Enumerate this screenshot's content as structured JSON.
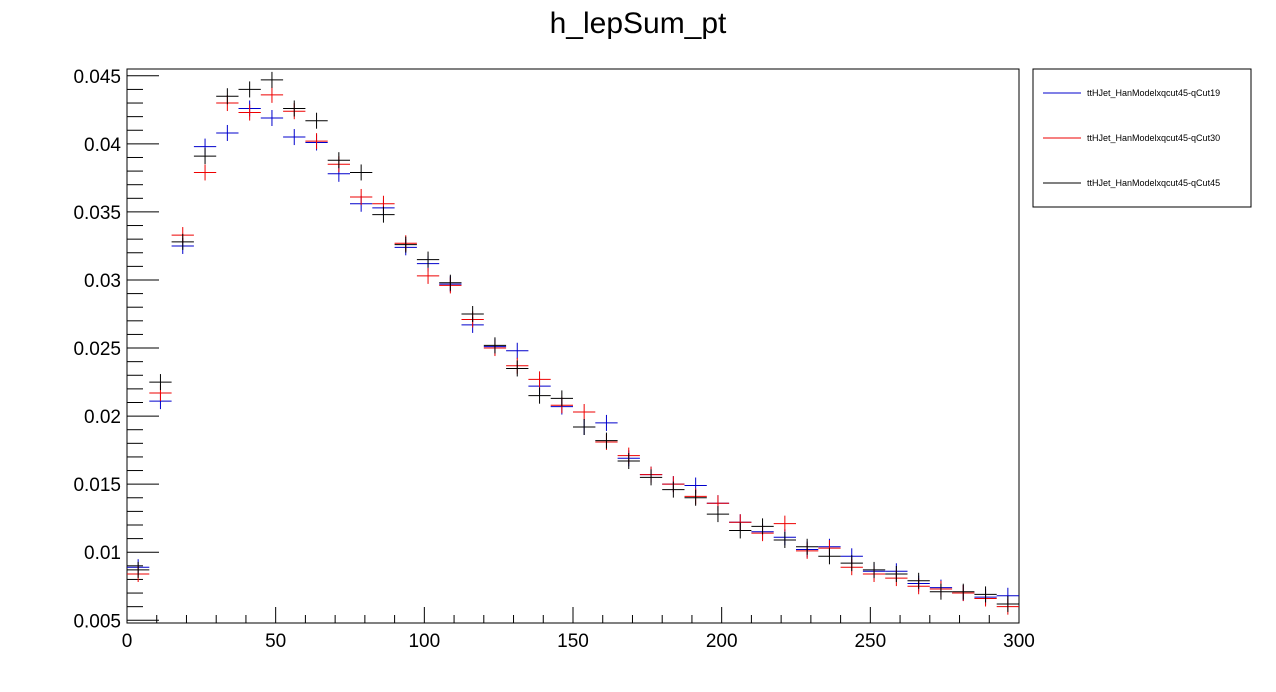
{
  "chart_data": {
    "type": "scatter",
    "title": "h_lepSum_pt",
    "xlabel": "",
    "ylabel": "",
    "xlim": [
      0,
      300
    ],
    "ylim": [
      0.0048,
      0.0455
    ],
    "x_ticks": [
      "0",
      "50",
      "100",
      "150",
      "200",
      "250",
      "300"
    ],
    "y_ticks": [
      "0.005",
      "0.01",
      "0.015",
      "0.02",
      "0.025",
      "0.03",
      "0.035",
      "0.04",
      "0.045"
    ],
    "grid": false,
    "legend_position": "top-right-outside",
    "bin_width": 7.5,
    "x": [
      3.75,
      11.25,
      18.75,
      26.25,
      33.75,
      41.25,
      48.75,
      56.25,
      63.75,
      71.25,
      78.75,
      86.25,
      93.75,
      101.25,
      108.75,
      116.25,
      123.75,
      131.25,
      138.75,
      146.25,
      153.75,
      161.25,
      168.75,
      176.25,
      183.75,
      191.25,
      198.75,
      206.25,
      213.75,
      221.25,
      228.75,
      236.25,
      243.75,
      251.25,
      258.75,
      266.25,
      273.75,
      281.25,
      288.75,
      296.25
    ],
    "series": [
      {
        "name": "ttHJet_HanModelxqcut45-qCut19",
        "color": "#0000cc",
        "values": [
          0.0089,
          0.0211,
          0.0325,
          0.0398,
          0.0408,
          0.0426,
          0.0419,
          0.0405,
          0.0401,
          0.0378,
          0.0356,
          0.0353,
          0.0324,
          0.0312,
          0.0297,
          0.0267,
          0.0251,
          0.0248,
          0.0222,
          0.0207,
          0.0192,
          0.0195,
          0.0169,
          0.0157,
          0.015,
          0.0149,
          0.0136,
          0.0122,
          0.0115,
          0.0111,
          0.0102,
          0.0104,
          0.0097,
          0.0086,
          0.0086,
          0.0077,
          0.0074,
          0.007,
          0.0067,
          0.0068
        ]
      },
      {
        "name": "ttHJet_HanModelxqcut45-qCut30",
        "color": "#ee0000",
        "values": [
          0.0084,
          0.0217,
          0.0333,
          0.0379,
          0.043,
          0.0423,
          0.0436,
          0.0424,
          0.0402,
          0.0385,
          0.0361,
          0.0356,
          0.0327,
          0.0303,
          0.0296,
          0.0271,
          0.025,
          0.0237,
          0.0227,
          0.0208,
          0.0203,
          0.0181,
          0.0171,
          0.0157,
          0.015,
          0.0141,
          0.0136,
          0.0122,
          0.0114,
          0.0121,
          0.0101,
          0.0103,
          0.0089,
          0.0084,
          0.0081,
          0.0075,
          0.0073,
          0.007,
          0.0066,
          0.006
        ]
      },
      {
        "name": "ttHJet_HanModelxqcut45-qCut45",
        "color": "#000000",
        "values": [
          0.0087,
          0.0225,
          0.0328,
          0.0391,
          0.0435,
          0.044,
          0.0447,
          0.0426,
          0.0417,
          0.0388,
          0.0379,
          0.0348,
          0.0326,
          0.0315,
          0.0298,
          0.0275,
          0.0252,
          0.0235,
          0.0215,
          0.0213,
          0.0192,
          0.0182,
          0.0167,
          0.0155,
          0.0146,
          0.014,
          0.0128,
          0.0116,
          0.0119,
          0.0109,
          0.0104,
          0.0097,
          0.0092,
          0.0087,
          0.0084,
          0.0079,
          0.0071,
          0.0071,
          0.0069,
          0.0062
        ]
      }
    ]
  }
}
